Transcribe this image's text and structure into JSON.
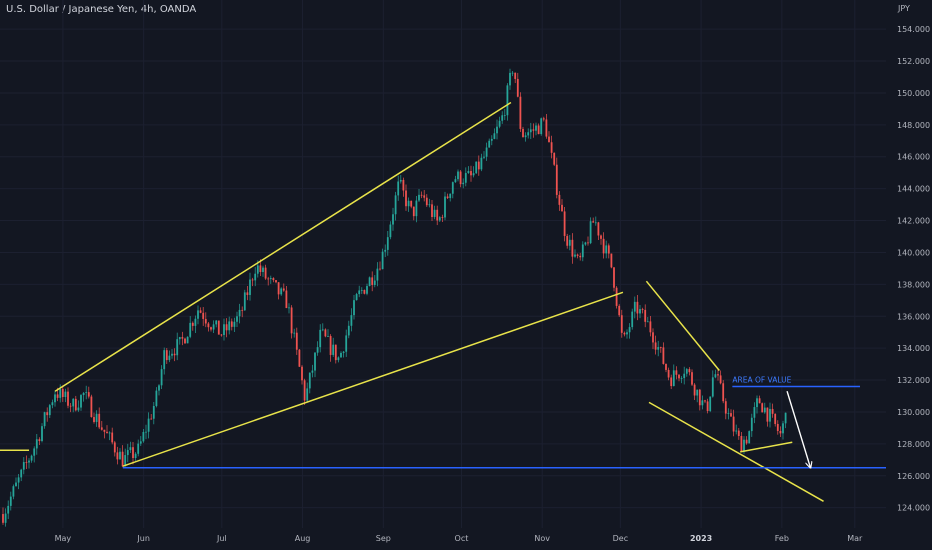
{
  "chart_data": {
    "type": "candlestick",
    "title": "U.S. Dollar / Japanese Yen, 4h, OANDA",
    "y_unit": "JPY",
    "ylim": [
      122.6,
      155.2
    ],
    "y_ticks": [
      "124.000",
      "126.000",
      "128.000",
      "130.000",
      "132.000",
      "134.000",
      "136.000",
      "138.000",
      "140.000",
      "142.000",
      "144.000",
      "146.000",
      "148.000",
      "150.000",
      "152.000",
      "154.000"
    ],
    "x_ticks": [
      {
        "label": "May",
        "date": "2022-05-01"
      },
      {
        "label": "Jun",
        "date": "2022-06-01"
      },
      {
        "label": "Jul",
        "date": "2022-07-01"
      },
      {
        "label": "Aug",
        "date": "2022-08-01"
      },
      {
        "label": "Sep",
        "date": "2022-09-01"
      },
      {
        "label": "Oct",
        "date": "2022-10-01"
      },
      {
        "label": "Nov",
        "date": "2022-11-01"
      },
      {
        "label": "Dec",
        "date": "2022-12-01"
      },
      {
        "label": "2023",
        "date": "2023-01-01",
        "bold": true
      },
      {
        "label": "Feb",
        "date": "2023-02-01"
      },
      {
        "label": "Mar",
        "date": "2023-03-01"
      }
    ],
    "price_path": [
      [
        "2022-04-08",
        123.6
      ],
      [
        "2022-04-20",
        127.8
      ],
      [
        "2022-04-28",
        131.3
      ],
      [
        "2022-05-05",
        130.4
      ],
      [
        "2022-05-09",
        131.1
      ],
      [
        "2022-05-16",
        129.0
      ],
      [
        "2022-05-24",
        127.0
      ],
      [
        "2022-05-30",
        127.6
      ],
      [
        "2022-06-06",
        130.9
      ],
      [
        "2022-06-09",
        133.7
      ],
      [
        "2022-06-15",
        134.2
      ],
      [
        "2022-06-22",
        136.5
      ],
      [
        "2022-06-28",
        135.3
      ],
      [
        "2022-07-01",
        134.9
      ],
      [
        "2022-07-08",
        136.0
      ],
      [
        "2022-07-14",
        139.2
      ],
      [
        "2022-07-20",
        138.0
      ],
      [
        "2022-07-26",
        136.9
      ],
      [
        "2022-08-02",
        130.8
      ],
      [
        "2022-08-08",
        134.9
      ],
      [
        "2022-08-15",
        133.3
      ],
      [
        "2022-08-22",
        137.2
      ],
      [
        "2022-08-29",
        138.8
      ],
      [
        "2022-09-01",
        140.0
      ],
      [
        "2022-09-07",
        144.3
      ],
      [
        "2022-09-12",
        142.4
      ],
      [
        "2022-09-16",
        143.6
      ],
      [
        "2022-09-22",
        141.8
      ],
      [
        "2022-09-28",
        144.7
      ],
      [
        "2022-10-05",
        144.7
      ],
      [
        "2022-10-12",
        146.6
      ],
      [
        "2022-10-17",
        148.6
      ],
      [
        "2022-10-21",
        151.9
      ],
      [
        "2022-10-24",
        147.4
      ],
      [
        "2022-10-28",
        147.6
      ],
      [
        "2022-11-02",
        148.2
      ],
      [
        "2022-11-10",
        141.1
      ],
      [
        "2022-11-15",
        139.2
      ],
      [
        "2022-11-21",
        142.1
      ],
      [
        "2022-11-28",
        138.9
      ],
      [
        "2022-12-02",
        134.2
      ],
      [
        "2022-12-07",
        136.6
      ],
      [
        "2022-12-13",
        135.1
      ],
      [
        "2022-12-20",
        132.1
      ],
      [
        "2022-12-26",
        132.8
      ],
      [
        "2023-01-03",
        130.0
      ],
      [
        "2023-01-06",
        132.6
      ],
      [
        "2023-01-12",
        129.5
      ],
      [
        "2023-01-16",
        128.0
      ],
      [
        "2023-01-19",
        128.5
      ],
      [
        "2023-01-23",
        130.8
      ],
      [
        "2023-01-27",
        129.8
      ],
      [
        "2023-02-01",
        128.4
      ],
      [
        "2023-02-03",
        131.3
      ]
    ],
    "annotations": [
      {
        "kind": "trendline",
        "color": "#e8e34a",
        "from": [
          "2022-03-20",
          127.6
        ],
        "to": [
          "2022-04-18",
          127.6
        ]
      },
      {
        "kind": "trendline",
        "color": "#e8e34a",
        "from": [
          "2022-04-28",
          131.3
        ],
        "to": [
          "2022-10-20",
          149.4
        ]
      },
      {
        "kind": "trendline",
        "color": "#e8e34a",
        "from": [
          "2022-05-24",
          126.6
        ],
        "to": [
          "2022-12-02",
          137.5
        ]
      },
      {
        "kind": "trendline",
        "color": "#e8e34a",
        "from": [
          "2022-12-11",
          138.2
        ],
        "to": [
          "2023-01-08",
          132.6
        ]
      },
      {
        "kind": "trendline",
        "color": "#e8e34a",
        "from": [
          "2022-12-12",
          130.6
        ],
        "to": [
          "2023-02-17",
          124.4
        ]
      },
      {
        "kind": "trendline",
        "color": "#e8e34a",
        "from": [
          "2023-01-16",
          127.5
        ],
        "to": [
          "2023-02-05",
          128.1
        ]
      },
      {
        "kind": "hline",
        "color": "#2962ff",
        "price": 126.5,
        "from": "2022-05-24",
        "to": "2023-03-15"
      },
      {
        "kind": "hline",
        "color": "#2962ff",
        "price": 131.6,
        "from": "2023-01-13",
        "to": "2023-03-03"
      },
      {
        "kind": "arrow",
        "color": "#ffffff",
        "from": [
          "2023-02-03",
          131.3
        ],
        "to": [
          "2023-02-12",
          126.5
        ]
      },
      {
        "kind": "text",
        "color": "#3d7bff",
        "text": "AREA OF VALUE",
        "at": [
          "2023-01-13",
          131.85
        ]
      }
    ]
  }
}
